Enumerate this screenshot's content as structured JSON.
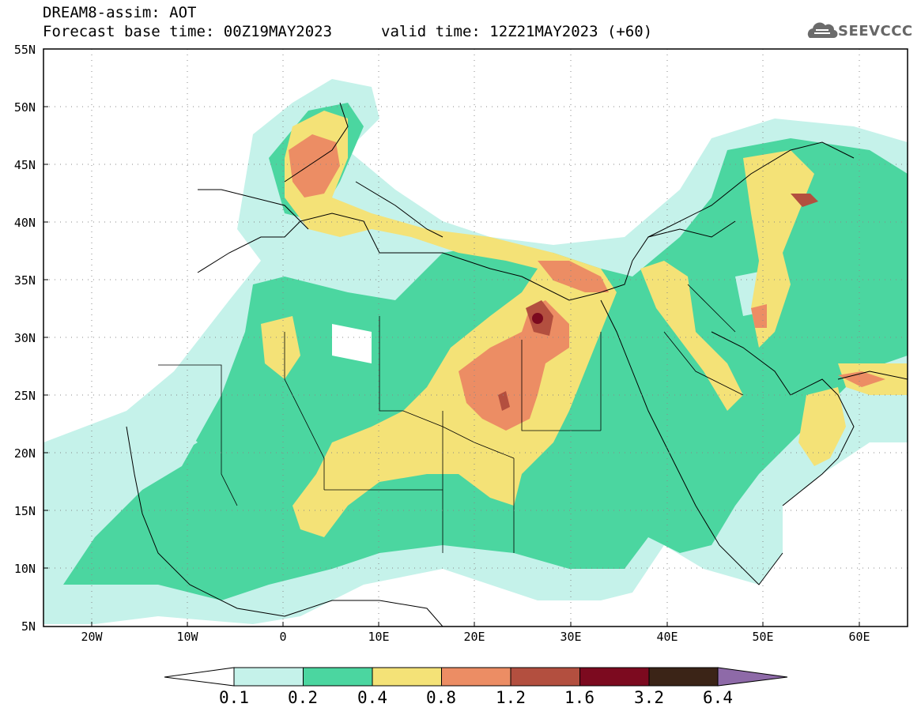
{
  "header": {
    "title": "DREAM8-assim: AOT",
    "base_time": "Forecast base time: 00Z19MAY2023",
    "valid_time": "valid time: 12Z21MAY2023 (+60)",
    "logo_text": "SEEVCCC"
  },
  "map": {
    "lat_labels": [
      "55N",
      "50N",
      "45N",
      "40N",
      "35N",
      "30N",
      "25N",
      "20N",
      "15N",
      "10N",
      "5N"
    ],
    "lon_labels": [
      "20W",
      "10W",
      "0",
      "10E",
      "20E",
      "30E",
      "40E",
      "50E",
      "60E"
    ],
    "lat_range": [
      5,
      55
    ],
    "lon_range": [
      -25,
      65
    ]
  },
  "colorbar": {
    "labels": [
      "0.1",
      "0.2",
      "0.4",
      "0.8",
      "1.2",
      "1.6",
      "3.2",
      "6.4"
    ],
    "colors": [
      "#c5f2ea",
      "#4bd6a0",
      "#f4e277",
      "#ec8d64",
      "#b34f3f",
      "#7c0a1f",
      "#3b2417",
      "#8e6aa8"
    ]
  }
}
